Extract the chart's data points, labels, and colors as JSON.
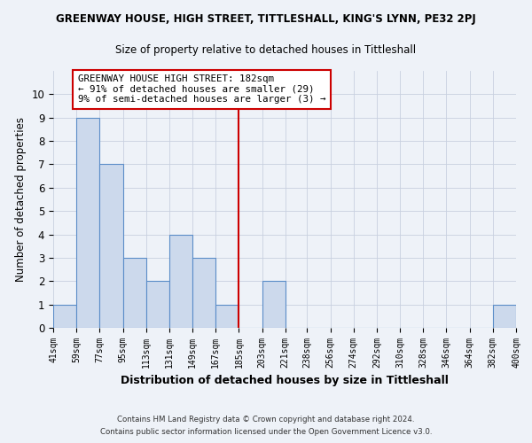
{
  "title": "GREENWAY HOUSE, HIGH STREET, TITTLESHALL, KING'S LYNN, PE32 2PJ",
  "subtitle": "Size of property relative to detached houses in Tittleshall",
  "xlabel": "Distribution of detached houses by size in Tittleshall",
  "ylabel": "Number of detached properties",
  "bar_edges": [
    41,
    59,
    77,
    95,
    113,
    131,
    149,
    167,
    185,
    203,
    221,
    238,
    256,
    274,
    292,
    310,
    328,
    346,
    364,
    382,
    400
  ],
  "bar_heights": [
    1,
    9,
    7,
    3,
    2,
    4,
    3,
    1,
    0,
    2,
    0,
    0,
    0,
    0,
    0,
    0,
    0,
    0,
    0,
    1
  ],
  "bar_color": "#ccd9ec",
  "bar_edgecolor": "#5b8dc8",
  "grid_color": "#c8d0e0",
  "reference_line_x": 185,
  "reference_line_color": "#cc0000",
  "annotation_title": "GREENWAY HOUSE HIGH STREET: 182sqm",
  "annotation_line1": "← 91% of detached houses are smaller (29)",
  "annotation_line2": "9% of semi-detached houses are larger (3) →",
  "annotation_box_edgecolor": "#cc0000",
  "annotation_box_facecolor": "#ffffff",
  "ylim": [
    0,
    11
  ],
  "yticks": [
    0,
    1,
    2,
    3,
    4,
    5,
    6,
    7,
    8,
    9,
    10,
    11
  ],
  "tick_labels": [
    "41sqm",
    "59sqm",
    "77sqm",
    "95sqm",
    "113sqm",
    "131sqm",
    "149sqm",
    "167sqm",
    "185sqm",
    "203sqm",
    "221sqm",
    "238sqm",
    "256sqm",
    "274sqm",
    "292sqm",
    "310sqm",
    "328sqm",
    "346sqm",
    "364sqm",
    "382sqm",
    "400sqm"
  ],
  "footer_line1": "Contains HM Land Registry data © Crown copyright and database right 2024.",
  "footer_line2": "Contains public sector information licensed under the Open Government Licence v3.0.",
  "bg_color": "#eef2f8",
  "title_fontsize": 8.5,
  "subtitle_fontsize": 8.5
}
